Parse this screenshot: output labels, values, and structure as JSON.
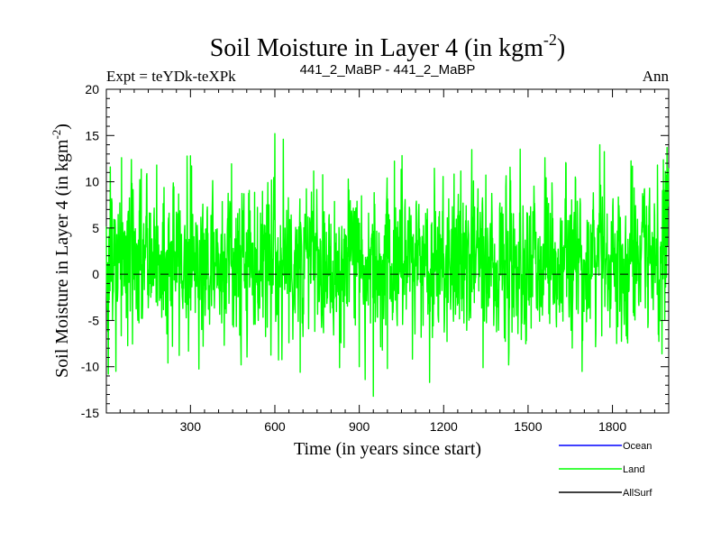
{
  "chart_data": {
    "type": "line",
    "title_main": "Soil Moisture in Layer 4 (in kgm",
    "title_sup": "-2",
    "title_close": ")",
    "subtitle_left": "Expt = teYDk-teXPk",
    "subtitle_center": "441_2_MaBP - 441_2_MaBP",
    "subtitle_right": "Ann",
    "xlabel": "Time (in years since start)",
    "ylabel_main": "Soil Moisture in Layer 4 (in kgm",
    "ylabel_sup": "-2",
    "ylabel_close": ")",
    "xlim": [
      1,
      2000
    ],
    "ylim": [
      -15,
      20
    ],
    "x_ticks": [
      300,
      600,
      900,
      1200,
      1500,
      1800
    ],
    "x_tick_labels": [
      "300",
      "600",
      "900",
      "1200",
      "1500",
      "1800"
    ],
    "y_ticks": [
      -15,
      -10,
      -5,
      0,
      5,
      10,
      15,
      20
    ],
    "y_tick_labels": [
      "-15",
      "-10",
      "-5",
      "0",
      "5",
      "10",
      "15",
      "20"
    ],
    "zero_line": 0,
    "series": [
      {
        "name": "Land",
        "color": "#00ff00",
        "generated": true,
        "sampling": {
          "start": 1,
          "end": 2000,
          "step": 1
        },
        "stats": {
          "mean": 1.5,
          "std": 4.6,
          "min": -13.2,
          "max": 15.2
        },
        "extremes": [
          {
            "x": 8,
            "y": -10.8
          },
          {
            "x": 15,
            "y": 11.6
          },
          {
            "x": 35,
            "y": -10.5
          },
          {
            "x": 55,
            "y": 12.6
          },
          {
            "x": 90,
            "y": 12.4
          },
          {
            "x": 180,
            "y": 11.8
          },
          {
            "x": 220,
            "y": -9.6
          },
          {
            "x": 300,
            "y": 12.8
          },
          {
            "x": 480,
            "y": -9.8
          },
          {
            "x": 600,
            "y": 15.2
          },
          {
            "x": 630,
            "y": 14.6
          },
          {
            "x": 690,
            "y": -10.6
          },
          {
            "x": 830,
            "y": -10.1
          },
          {
            "x": 900,
            "y": -10.0
          },
          {
            "x": 950,
            "y": -13.2
          },
          {
            "x": 1000,
            "y": -10.2
          },
          {
            "x": 1340,
            "y": -10.1
          },
          {
            "x": 1560,
            "y": 12.6
          },
          {
            "x": 1755,
            "y": 14.0
          },
          {
            "x": 1960,
            "y": 11.8
          },
          {
            "x": 1990,
            "y": 10.7
          }
        ]
      },
      {
        "name": "Ocean",
        "color": "#0000ff",
        "values": []
      },
      {
        "name": "AllSurf",
        "color": "#000000",
        "values": []
      }
    ],
    "legend": [
      {
        "name": "Ocean",
        "color": "#0000ff"
      },
      {
        "name": "Land",
        "color": "#00ff00"
      },
      {
        "name": "AllSurf",
        "color": "#000000"
      }
    ],
    "legend_placement": "bottom-right"
  }
}
